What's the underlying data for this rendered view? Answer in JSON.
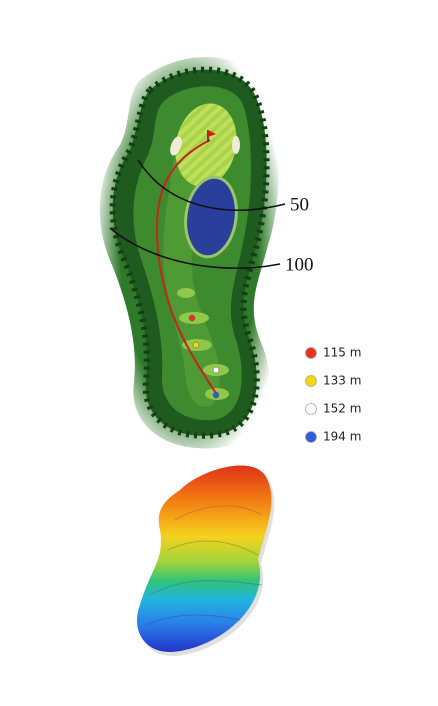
{
  "distance_markers": [
    "50",
    "100"
  ],
  "tees": [
    {
      "label": "115 m",
      "color": "#e8321e"
    },
    {
      "label": "133 m",
      "color": "#f5d800"
    },
    {
      "label": "152 m",
      "color": "#ffffff"
    },
    {
      "label": "194 m",
      "color": "#2f5bd6"
    }
  ]
}
